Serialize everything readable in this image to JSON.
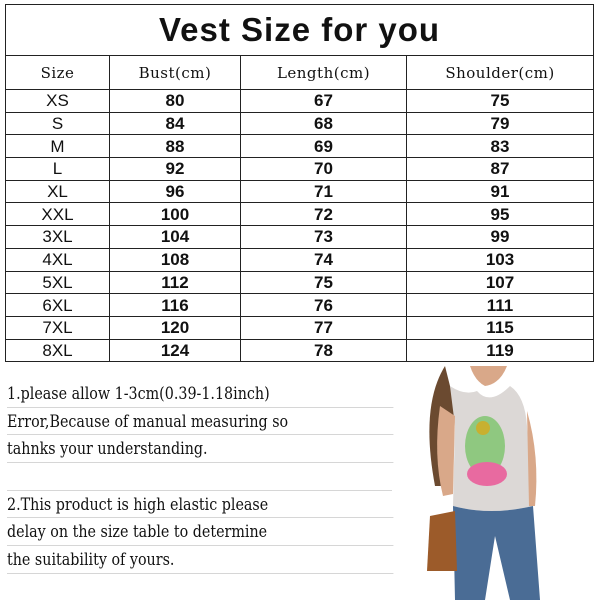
{
  "title": "Vest Size for you",
  "columns": [
    "Size",
    "Bust(cm)",
    "Length(cm)",
    "Shoulder(cm)"
  ],
  "rows": [
    [
      "XS",
      "80",
      "67",
      "75"
    ],
    [
      "S",
      "84",
      "68",
      "79"
    ],
    [
      "M",
      "88",
      "69",
      "83"
    ],
    [
      "L",
      "92",
      "70",
      "87"
    ],
    [
      "XL",
      "96",
      "71",
      "91"
    ],
    [
      "XXL",
      "100",
      "72",
      "95"
    ],
    [
      "3XL",
      "104",
      "73",
      "99"
    ],
    [
      "4XL",
      "108",
      "74",
      "103"
    ],
    [
      "5XL",
      "112",
      "75",
      "107"
    ],
    [
      "6XL",
      "116",
      "76",
      "111"
    ],
    [
      "7XL",
      "120",
      "77",
      "115"
    ],
    [
      "8XL",
      "124",
      "78",
      "119"
    ]
  ],
  "notes": {
    "note1": [
      "1.please allow 1-3cm(0.39-1.18inch)",
      "Error,Because of manual measuring so",
      "tahnks your understanding."
    ],
    "note2": [
      "2.This product is high elastic please",
      "delay on the size table to determine",
      "the suitability of yours."
    ]
  },
  "colors": {
    "title": "#e8140e",
    "grid": "#222222",
    "rule": "#d6d6d6"
  }
}
